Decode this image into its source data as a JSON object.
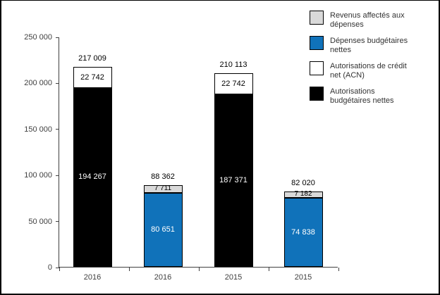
{
  "chart_data": {
    "type": "bar",
    "stacked": true,
    "title": "",
    "xlabel": "",
    "ylabel": "",
    "ylim": [
      0,
      250000
    ],
    "grid": false,
    "legend_position": "top-right",
    "axis_color": "#404040",
    "y_ticks": [
      {
        "value": 0,
        "label": "0"
      },
      {
        "value": 50000,
        "label": "50 000"
      },
      {
        "value": 100000,
        "label": "100 000"
      },
      {
        "value": 150000,
        "label": "150 000"
      },
      {
        "value": 200000,
        "label": "200 000"
      },
      {
        "value": 250000,
        "label": "250 000"
      }
    ],
    "categories": [
      "2016",
      "2016",
      "2015",
      "2015"
    ],
    "legend": [
      {
        "label": "Revenus affectés aux dépenses",
        "color": "#d9d9d9"
      },
      {
        "label": "Dépenses budgétaires nettes",
        "color": "#1072ba"
      },
      {
        "label": "Autorisations de crédit net (ACN)",
        "color": "#ffffff"
      },
      {
        "label": "Autorisations budgétaires nettes",
        "color": "#000000"
      }
    ],
    "bars": [
      {
        "category": "2016",
        "total_value": 217009,
        "total_label": "217 009",
        "segments": [
          {
            "series": "Autorisations budgétaires nettes",
            "value": 194267,
            "label": "194 267",
            "color": "#000000",
            "label_color": "#ffffff"
          },
          {
            "series": "Autorisations de crédit net (ACN)",
            "value": 22742,
            "label": "22 742",
            "color": "#ffffff",
            "label_color": "#000000"
          }
        ]
      },
      {
        "category": "2016",
        "total_value": 88362,
        "total_label": "88 362",
        "segments": [
          {
            "series": "Dépenses budgétaires nettes",
            "value": 80651,
            "label": "80 651",
            "color": "#1072ba",
            "label_color": "#ffffff"
          },
          {
            "series": "Revenus affectés aux dépenses",
            "value": 7711,
            "label": "7 711",
            "color": "#d9d9d9",
            "label_color": "#000000"
          }
        ]
      },
      {
        "category": "2015",
        "total_value": 210113,
        "total_label": "210 113",
        "segments": [
          {
            "series": "Autorisations budgétaires nettes",
            "value": 187371,
            "label": "187 371",
            "color": "#000000",
            "label_color": "#ffffff"
          },
          {
            "series": "Autorisations de crédit net (ACN)",
            "value": 22742,
            "label": "22 742",
            "color": "#ffffff",
            "label_color": "#000000"
          }
        ]
      },
      {
        "category": "2015",
        "total_value": 82020,
        "total_label": "82 020",
        "segments": [
          {
            "series": "Dépenses budgétaires nettes",
            "value": 74838,
            "label": "74 838",
            "color": "#1072ba",
            "label_color": "#ffffff"
          },
          {
            "series": "Revenus affectés aux dépenses",
            "value": 7182,
            "label": "7 182",
            "color": "#d9d9d9",
            "label_color": "#000000"
          }
        ]
      }
    ]
  }
}
